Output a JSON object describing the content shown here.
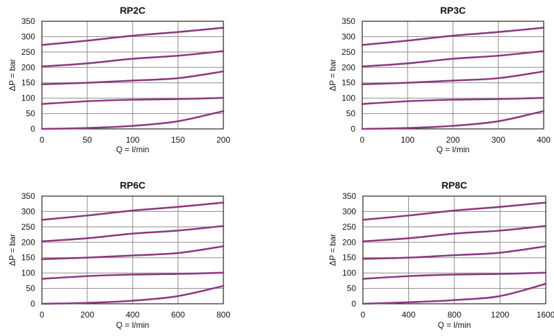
{
  "colors": {
    "curve": "#8b3a80",
    "grid": "#8a8a8a"
  },
  "chart_data": [
    {
      "type": "line",
      "title": "RP2C",
      "xlabel": "Q = l/min",
      "ylabel": "ΔP = bar",
      "xlim": [
        0,
        200
      ],
      "ylim": [
        0,
        350
      ],
      "grid": true,
      "xticks": [
        "0",
        "50",
        "100",
        "150",
        "200"
      ],
      "yticks": [
        "0",
        "50",
        "100",
        "150",
        "200",
        "250",
        "300",
        "350"
      ],
      "x": [
        0,
        50,
        100,
        150,
        200
      ],
      "series": [
        {
          "values": [
            273,
            287,
            303,
            315,
            329
          ]
        },
        {
          "values": [
            203,
            213,
            228,
            238,
            253
          ]
        },
        {
          "values": [
            145,
            150,
            157,
            165,
            187
          ]
        },
        {
          "values": [
            81,
            90,
            95,
            97,
            101
          ]
        },
        {
          "values": [
            0,
            3,
            10,
            25,
            58
          ]
        }
      ]
    },
    {
      "type": "line",
      "title": "RP3C",
      "xlabel": "Q = l/min",
      "ylabel": "ΔP = bar",
      "xlim": [
        0,
        400
      ],
      "ylim": [
        0,
        350
      ],
      "grid": true,
      "xticks": [
        "0",
        "100",
        "200",
        "300",
        "400"
      ],
      "yticks": [
        "0",
        "50",
        "100",
        "150",
        "200",
        "250",
        "300",
        "350"
      ],
      "x": [
        0,
        100,
        200,
        300,
        400
      ],
      "series": [
        {
          "values": [
            273,
            287,
            303,
            315,
            329
          ]
        },
        {
          "values": [
            203,
            213,
            228,
            238,
            253
          ]
        },
        {
          "values": [
            145,
            150,
            157,
            165,
            187
          ]
        },
        {
          "values": [
            81,
            90,
            95,
            97,
            101
          ]
        },
        {
          "values": [
            0,
            3,
            10,
            25,
            58
          ]
        }
      ]
    },
    {
      "type": "line",
      "title": "RP6C",
      "xlabel": "Q = l/min",
      "ylabel": "ΔP = bar",
      "xlim": [
        0,
        800
      ],
      "ylim": [
        0,
        350
      ],
      "grid": true,
      "xticks": [
        "0",
        "200",
        "400",
        "600",
        "800"
      ],
      "yticks": [
        "0",
        "50",
        "100",
        "150",
        "200",
        "250",
        "300",
        "350"
      ],
      "x": [
        0,
        200,
        400,
        600,
        800
      ],
      "series": [
        {
          "values": [
            273,
            287,
            303,
            315,
            329
          ]
        },
        {
          "values": [
            203,
            213,
            228,
            238,
            253
          ]
        },
        {
          "values": [
            145,
            150,
            157,
            165,
            187
          ]
        },
        {
          "values": [
            81,
            90,
            95,
            97,
            101
          ]
        },
        {
          "values": [
            0,
            3,
            10,
            25,
            58
          ]
        }
      ]
    },
    {
      "type": "line",
      "title": "RP8C",
      "xlabel": "Q = l/min",
      "ylabel": "ΔP = bar",
      "xlim": [
        0,
        1600
      ],
      "ylim": [
        0,
        350
      ],
      "grid": true,
      "xticks": [
        "0",
        "400",
        "800",
        "1200",
        "1600"
      ],
      "yticks": [
        "0",
        "50",
        "100",
        "150",
        "200",
        "250",
        "300",
        "350"
      ],
      "x": [
        0,
        400,
        800,
        1200,
        1600
      ],
      "series": [
        {
          "values": [
            273,
            287,
            303,
            315,
            329
          ]
        },
        {
          "values": [
            203,
            213,
            228,
            238,
            253
          ]
        },
        {
          "values": [
            146,
            150,
            158,
            166,
            187
          ]
        },
        {
          "values": [
            81,
            90,
            95,
            97,
            101
          ]
        },
        {
          "values": [
            0,
            5,
            12,
            25,
            65
          ]
        }
      ]
    }
  ]
}
